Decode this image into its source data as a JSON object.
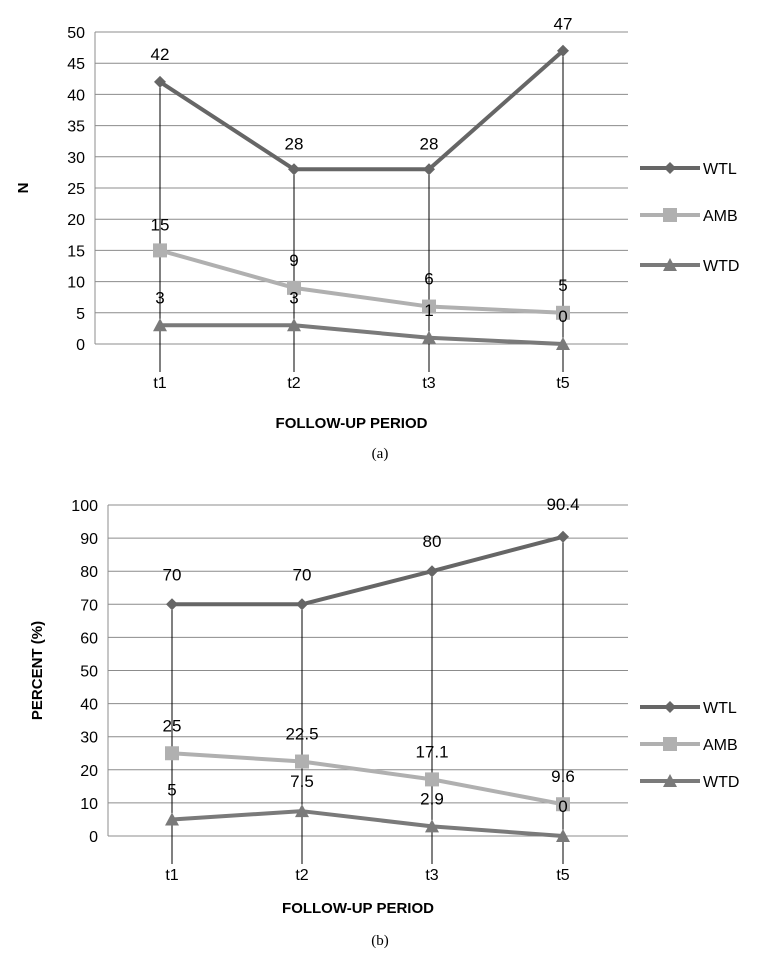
{
  "chart_data": [
    {
      "type": "line",
      "categories": [
        "t1",
        "t2",
        "t3",
        "t5"
      ],
      "ylim": [
        0,
        50
      ],
      "ystep": 5,
      "xlabel": "FOLLOW-UP PERIOD",
      "ylabel": "N",
      "caption": "(a)",
      "grid": true,
      "legend": "right",
      "series": [
        {
          "name": "WTL",
          "values": [
            42,
            28,
            28,
            47
          ],
          "color": "#666666",
          "marker": "diamond"
        },
        {
          "name": "AMB",
          "values": [
            15,
            9,
            6,
            5
          ],
          "color": "#b0b0b0",
          "marker": "square"
        },
        {
          "name": "WTD",
          "values": [
            3,
            3,
            1,
            0
          ],
          "color": "#7a7a7a",
          "marker": "triangle"
        }
      ]
    },
    {
      "type": "line",
      "categories": [
        "t1",
        "t2",
        "t3",
        "t5"
      ],
      "ylim": [
        0,
        100
      ],
      "ystep": 10,
      "xlabel": "FOLLOW-UP PERIOD",
      "ylabel": "PERCENT (%)",
      "caption": "(b)",
      "grid": true,
      "legend": "right",
      "series": [
        {
          "name": "WTL",
          "values": [
            70,
            70,
            80,
            90.4
          ],
          "color": "#666666",
          "marker": "diamond"
        },
        {
          "name": "AMB",
          "values": [
            25,
            22.5,
            17.1,
            9.6
          ],
          "color": "#b0b0b0",
          "marker": "square"
        },
        {
          "name": "WTD",
          "values": [
            5,
            7.5,
            2.9,
            0
          ],
          "color": "#7a7a7a",
          "marker": "triangle"
        }
      ]
    }
  ]
}
